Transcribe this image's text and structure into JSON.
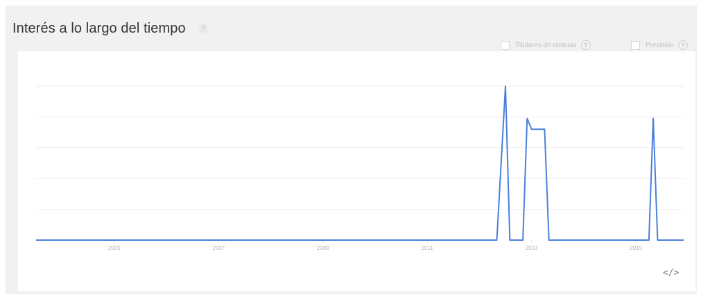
{
  "panel": {
    "title": "Interés a lo largo del tiempo",
    "help_icon": "help-dot-icon",
    "options": [
      {
        "label": "Titulares de noticias",
        "checked": false
      },
      {
        "label": "Previsión",
        "checked": false
      }
    ],
    "embed_label": "</>"
  },
  "chart_data": {
    "type": "line",
    "title": "",
    "xlabel": "",
    "ylabel": "",
    "x_tick_labels": [
      "2005",
      "2007",
      "2009",
      "2011",
      "2013",
      "2015"
    ],
    "xlim": [
      "2004-01",
      "2016-06"
    ],
    "ylim": [
      0,
      100
    ],
    "grid": true,
    "series": [
      {
        "color": "#4a7fdb",
        "points": [
          {
            "x": "2004-01",
            "y": 0
          },
          {
            "x": "2012-11",
            "y": 0
          },
          {
            "x": "2013-01",
            "y": 100
          },
          {
            "x": "2013-02",
            "y": 0
          },
          {
            "x": "2013-05",
            "y": 0
          },
          {
            "x": "2013-06",
            "y": 79
          },
          {
            "x": "2013-07",
            "y": 72
          },
          {
            "x": "2013-08",
            "y": 72
          },
          {
            "x": "2013-09",
            "y": 72
          },
          {
            "x": "2013-10",
            "y": 72
          },
          {
            "x": "2013-11",
            "y": 0
          },
          {
            "x": "2015-10",
            "y": 0
          },
          {
            "x": "2015-11",
            "y": 79
          },
          {
            "x": "2015-12",
            "y": 0
          },
          {
            "x": "2016-06",
            "y": 0
          }
        ]
      }
    ]
  }
}
